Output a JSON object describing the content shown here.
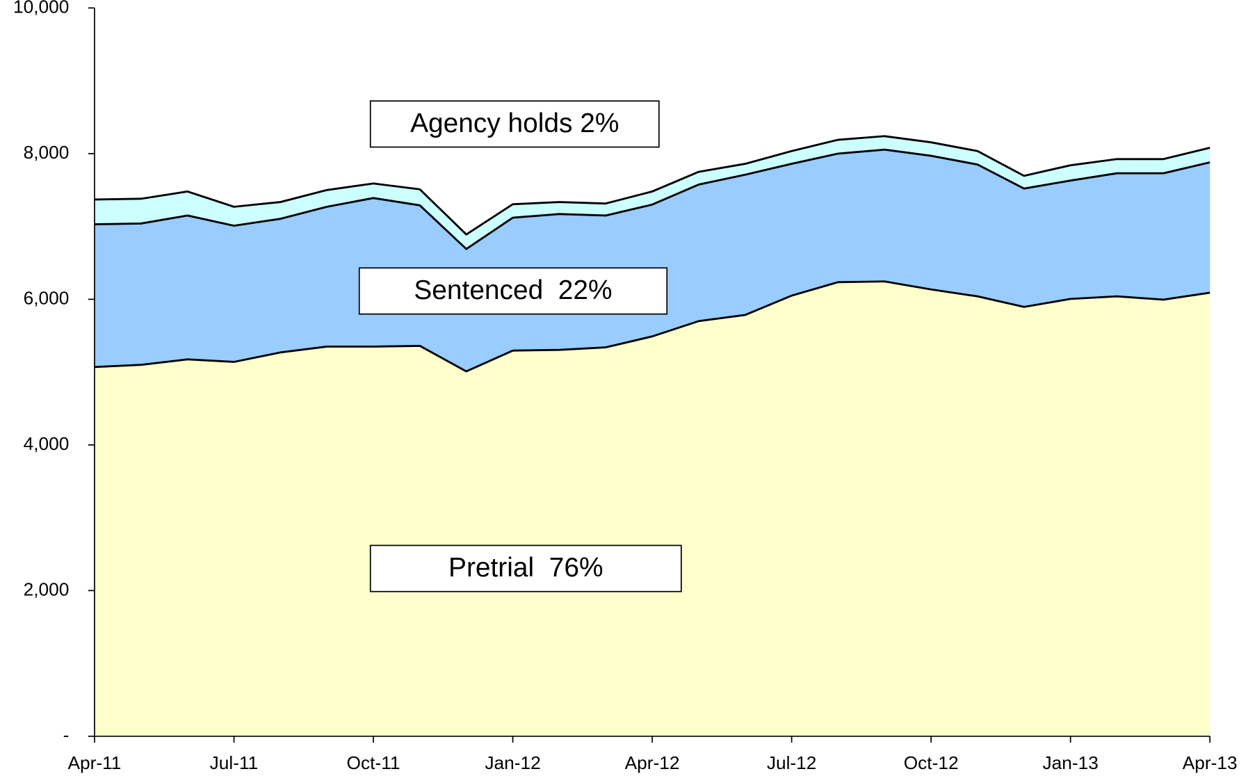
{
  "chart_data": {
    "type": "stacked-area",
    "categories": [
      "Apr-11",
      null,
      null,
      "Jul-11",
      null,
      null,
      "Oct-11",
      null,
      null,
      "Jan-12",
      null,
      null,
      "Apr-12",
      null,
      null,
      "Jul-12",
      null,
      null,
      "Oct-12",
      null,
      null,
      "Jan-13",
      null,
      null,
      "Apr-13"
    ],
    "series": [
      {
        "name": "Pretrial  76%",
        "color": "#ffffcc",
        "values": [
          5070,
          5100,
          5175,
          5140,
          5270,
          5350,
          5350,
          5360,
          5010,
          5295,
          5305,
          5340,
          5490,
          5700,
          5785,
          6050,
          6235,
          6245,
          6135,
          6040,
          5895,
          6005,
          6040,
          5995,
          6090
        ]
      },
      {
        "name": "Sentenced  22%",
        "color": "#99ccff",
        "values": [
          1960,
          1940,
          1975,
          1870,
          1835,
          1920,
          2040,
          1930,
          1680,
          1825,
          1865,
          1810,
          1810,
          1875,
          1925,
          1810,
          1765,
          1810,
          1835,
          1810,
          1625,
          1625,
          1690,
          1735,
          1790
        ]
      },
      {
        "name": "Agency holds 2%",
        "color": "#ccffff",
        "values": [
          340,
          340,
          330,
          260,
          230,
          230,
          200,
          220,
          200,
          185,
          165,
          165,
          180,
          175,
          150,
          175,
          190,
          185,
          185,
          185,
          175,
          210,
          195,
          195,
          200
        ]
      }
    ],
    "ylim": [
      0,
      10000
    ],
    "yticks": [
      {
        "value": 0,
        "label": "-"
      },
      {
        "value": 2000,
        "label": "2,000"
      },
      {
        "value": 4000,
        "label": "4,000"
      },
      {
        "value": 6000,
        "label": "6,000"
      },
      {
        "value": 8000,
        "label": "8,000"
      },
      {
        "value": 10000,
        "label": "10,000"
      }
    ]
  }
}
